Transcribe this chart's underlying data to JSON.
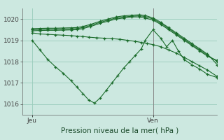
{
  "title": "Pression niveau de la mer( hPa )",
  "bg_color": "#cce8e0",
  "grid_color": "#99ccbb",
  "line_color": "#1a6b2a",
  "vline_color": "#888888",
  "ylim": [
    1015.5,
    1020.5
  ],
  "yticks": [
    1016,
    1017,
    1018,
    1019,
    1020
  ],
  "ylabel_fontsize": 6.5,
  "xlim": [
    0,
    1.0
  ],
  "xtick_positions": [
    0.05,
    0.67
  ],
  "xtick_labels": [
    "Jeu",
    "Ven"
  ],
  "vline_x": 0.67,
  "xlabel": "Pression niveau de la mer( hPa )",
  "xlabel_fontsize": 7.5,
  "series": [
    {
      "x": [
        0.05,
        0.09,
        0.13,
        0.17,
        0.21,
        0.25,
        0.28,
        0.31,
        0.34,
        0.37,
        0.4,
        0.43,
        0.46,
        0.49,
        0.52,
        0.55,
        0.58,
        0.61,
        0.63,
        0.67,
        0.71,
        0.74,
        0.77,
        0.8,
        0.83,
        0.87,
        0.91,
        0.95,
        1.0
      ],
      "y": [
        1019.0,
        1018.55,
        1018.1,
        1017.75,
        1017.45,
        1017.1,
        1016.8,
        1016.5,
        1016.2,
        1016.05,
        1016.3,
        1016.65,
        1017.0,
        1017.35,
        1017.7,
        1018.0,
        1018.3,
        1018.6,
        1019.0,
        1019.5,
        1019.1,
        1018.7,
        1019.0,
        1018.5,
        1018.1,
        1017.85,
        1017.65,
        1017.4,
        1017.25
      ]
    },
    {
      "x": [
        0.05,
        0.09,
        0.13,
        0.17,
        0.21,
        0.25,
        0.28,
        0.31,
        0.34,
        0.38,
        0.42,
        0.46,
        0.5,
        0.54,
        0.58,
        0.61,
        0.64,
        0.67,
        0.71,
        0.75,
        0.79,
        0.83,
        0.87,
        0.91,
        0.95,
        1.0
      ],
      "y": [
        1019.35,
        1019.3,
        1019.28,
        1019.26,
        1019.24,
        1019.22,
        1019.2,
        1019.18,
        1019.15,
        1019.12,
        1019.1,
        1019.08,
        1019.05,
        1019.0,
        1018.95,
        1018.9,
        1018.85,
        1018.8,
        1018.7,
        1018.55,
        1018.4,
        1018.2,
        1018.0,
        1017.8,
        1017.6,
        1017.3
      ]
    },
    {
      "x": [
        0.05,
        0.09,
        0.13,
        0.17,
        0.21,
        0.25,
        0.28,
        0.31,
        0.35,
        0.4,
        0.44,
        0.48,
        0.52,
        0.56,
        0.6,
        0.63,
        0.67,
        0.71,
        0.75,
        0.79,
        0.83,
        0.87,
        0.91,
        0.95,
        1.0
      ],
      "y": [
        1019.45,
        1019.46,
        1019.47,
        1019.47,
        1019.48,
        1019.49,
        1019.5,
        1019.55,
        1019.65,
        1019.8,
        1019.9,
        1020.0,
        1020.05,
        1020.1,
        1020.1,
        1020.05,
        1019.95,
        1019.75,
        1019.5,
        1019.25,
        1019.0,
        1018.75,
        1018.5,
        1018.25,
        1018.05
      ]
    },
    {
      "x": [
        0.05,
        0.09,
        0.13,
        0.17,
        0.21,
        0.25,
        0.28,
        0.31,
        0.35,
        0.4,
        0.44,
        0.48,
        0.52,
        0.56,
        0.6,
        0.63,
        0.67,
        0.71,
        0.75,
        0.79,
        0.83,
        0.87,
        0.91,
        0.95,
        1.0
      ],
      "y": [
        1019.5,
        1019.51,
        1019.52,
        1019.52,
        1019.53,
        1019.54,
        1019.55,
        1019.6,
        1019.7,
        1019.85,
        1019.95,
        1020.05,
        1020.1,
        1020.13,
        1020.15,
        1020.12,
        1020.0,
        1019.8,
        1019.55,
        1019.3,
        1019.05,
        1018.8,
        1018.55,
        1018.3,
        1018.0
      ]
    },
    {
      "x": [
        0.05,
        0.09,
        0.13,
        0.17,
        0.21,
        0.25,
        0.28,
        0.31,
        0.35,
        0.4,
        0.44,
        0.48,
        0.52,
        0.56,
        0.6,
        0.63,
        0.67,
        0.71,
        0.75,
        0.79,
        0.83,
        0.87,
        0.91,
        0.95,
        1.0
      ],
      "y": [
        1019.55,
        1019.56,
        1019.57,
        1019.57,
        1019.58,
        1019.59,
        1019.6,
        1019.65,
        1019.75,
        1019.9,
        1020.0,
        1020.1,
        1020.15,
        1020.18,
        1020.2,
        1020.17,
        1020.05,
        1019.85,
        1019.6,
        1019.35,
        1019.1,
        1018.85,
        1018.6,
        1018.35,
        1017.85
      ]
    }
  ]
}
